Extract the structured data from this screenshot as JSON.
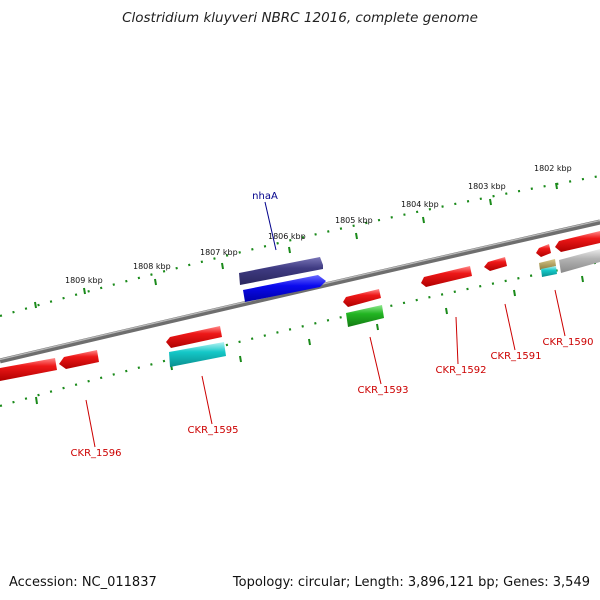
{
  "title": "Clostridium kluyveri NBRC 12016, complete genome",
  "footer": {
    "accession": "Accession: NC_011837",
    "summary": "Topology: circular; Length: 3,896,121 bp; Genes: 3,549"
  },
  "scale_labels": [
    "1809 kbp",
    "1808 kbp",
    "1807 kbp",
    "1806 kbp",
    "1805 kbp",
    "1804 kbp",
    "1803 kbp",
    "1802 kbp"
  ],
  "gene_labels": {
    "top": [
      "nhaA"
    ],
    "bottom": [
      "CKR_1596",
      "CKR_1595",
      "CKR_1593",
      "CKR_1592",
      "CKR_1591",
      "CKR_1590"
    ]
  },
  "colors": {
    "label_top": "#00008b",
    "label_bottom": "#cc0000",
    "gene_red": "#e01010",
    "gene_blue": "#0a0aee",
    "gene_navy": "#3f3b82",
    "gene_green": "#22b522",
    "gene_cyan": "#14c8c8",
    "gene_gray": "#b3b3b3",
    "backbone": "#8a8a8a",
    "ticks": "#1a8a1a"
  }
}
